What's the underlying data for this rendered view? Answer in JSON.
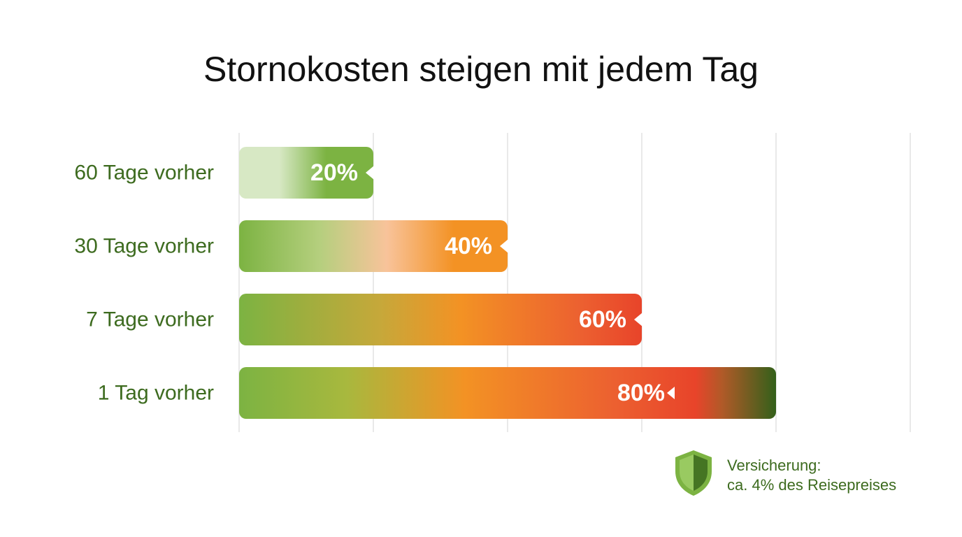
{
  "chart_data": {
    "type": "bar",
    "orientation": "horizontal",
    "title": "Stornokosten steigen mit jedem Tag",
    "categories": [
      "60 Tage vorher",
      "30 Tage vorher",
      "7 Tage vorher",
      "1 Tag vorher"
    ],
    "values": [
      20,
      40,
      60,
      80
    ],
    "value_labels": [
      "20%",
      "40%",
      "60%",
      "80%"
    ],
    "xlim": [
      0,
      100
    ],
    "grid": true,
    "xlabel": "",
    "ylabel": ""
  },
  "note": {
    "line1": "Versicherung:",
    "line2": "ca. 4% des Reisepreises",
    "icon": "shield-icon"
  },
  "colors": {
    "title": "#111111",
    "category_label": "#3d6b1f",
    "grid": "#e2e2e2",
    "light_green": "#d7e8c4",
    "green": "#7cb342",
    "peach": "#f8c39a",
    "orange": "#f39224",
    "red": "#e8442a",
    "dark_green": "#33601a",
    "note_text": "#3d6b1f"
  }
}
